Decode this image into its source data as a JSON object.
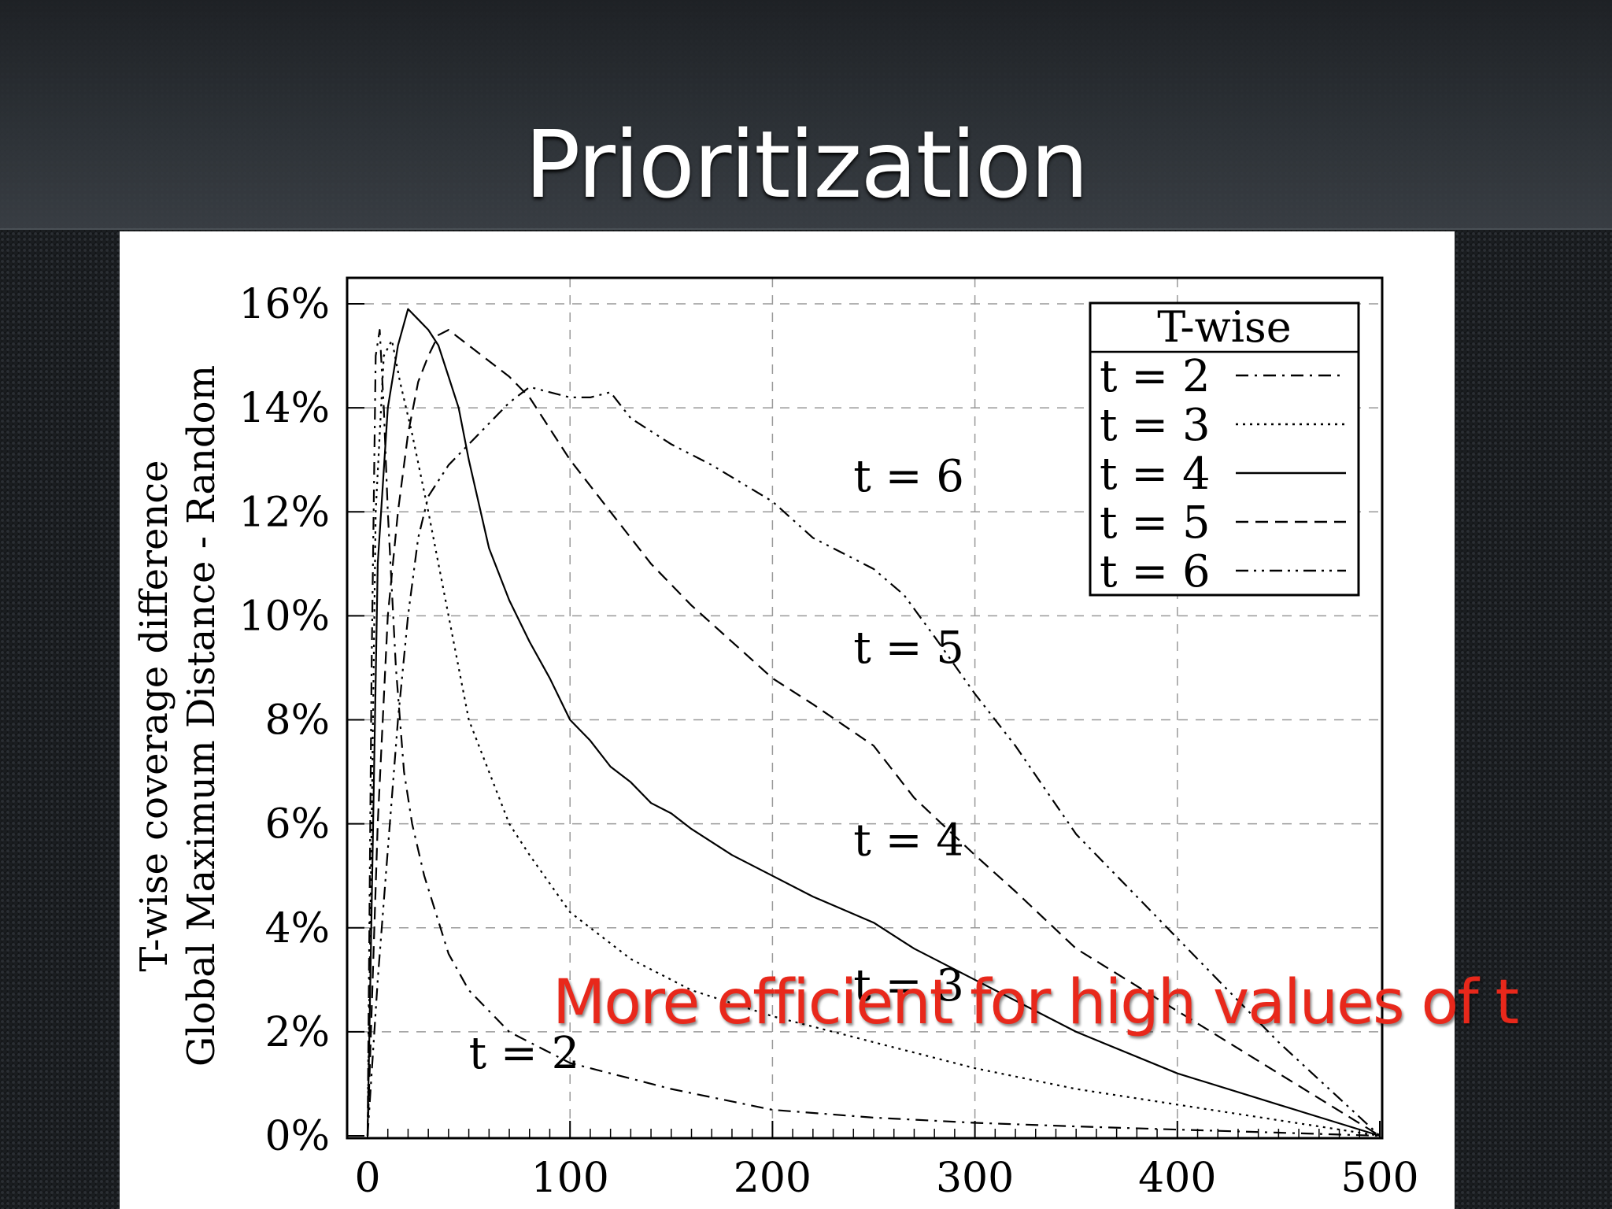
{
  "slide": {
    "title": "Prioritization",
    "annotation": "More efficient for high values of t",
    "annotation_color": "#e8281b"
  },
  "chart_data": {
    "type": "line",
    "title": "",
    "xlabel": "",
    "ylabel_lines": [
      "T-wise coverage difference",
      "Global Maximum Distance - Random"
    ],
    "xlim": [
      0,
      500
    ],
    "ylim": [
      0,
      16.5
    ],
    "x_ticks": [
      0,
      100,
      200,
      300,
      400,
      500
    ],
    "x_tick_labels": [
      "0",
      "100",
      "200",
      "300",
      "400",
      "500"
    ],
    "y_ticks": [
      0,
      2,
      4,
      6,
      8,
      10,
      12,
      14,
      16
    ],
    "y_tick_labels": [
      "0%",
      "2%",
      "4%",
      "6%",
      "8%",
      "10%",
      "12%",
      "14%",
      "16%"
    ],
    "grid": true,
    "legend": {
      "title": "T-wise",
      "placement": "top-right"
    },
    "series": [
      {
        "name": "t = 2",
        "style": "dash-dot",
        "points": [
          [
            0,
            0
          ],
          [
            2,
            9
          ],
          [
            4,
            15
          ],
          [
            6,
            15.5
          ],
          [
            8,
            14
          ],
          [
            10,
            12
          ],
          [
            14,
            9
          ],
          [
            18,
            7
          ],
          [
            22,
            6
          ],
          [
            28,
            5
          ],
          [
            32,
            4.5
          ],
          [
            40,
            3.5
          ],
          [
            50,
            2.8
          ],
          [
            70,
            2
          ],
          [
            100,
            1.4
          ],
          [
            150,
            0.9
          ],
          [
            200,
            0.5
          ],
          [
            250,
            0.35
          ],
          [
            300,
            0.25
          ],
          [
            350,
            0.18
          ],
          [
            400,
            0.12
          ],
          [
            450,
            0.06
          ],
          [
            500,
            0
          ]
        ]
      },
      {
        "name": "t = 3",
        "style": "dotted",
        "points": [
          [
            0,
            0
          ],
          [
            4,
            12
          ],
          [
            8,
            15
          ],
          [
            12,
            15.3
          ],
          [
            16,
            14.5
          ],
          [
            22,
            13.5
          ],
          [
            30,
            12
          ],
          [
            40,
            10
          ],
          [
            50,
            8
          ],
          [
            60,
            7
          ],
          [
            70,
            6
          ],
          [
            80,
            5.4
          ],
          [
            100,
            4.3
          ],
          [
            130,
            3.4
          ],
          [
            160,
            2.8
          ],
          [
            200,
            2.3
          ],
          [
            250,
            1.8
          ],
          [
            300,
            1.3
          ],
          [
            350,
            0.9
          ],
          [
            400,
            0.6
          ],
          [
            450,
            0.3
          ],
          [
            500,
            0
          ]
        ]
      },
      {
        "name": "t = 4",
        "style": "solid",
        "points": [
          [
            0,
            0
          ],
          [
            5,
            11
          ],
          [
            10,
            14
          ],
          [
            15,
            15.2
          ],
          [
            20,
            15.9
          ],
          [
            25,
            15.7
          ],
          [
            30,
            15.5
          ],
          [
            35,
            15.2
          ],
          [
            40,
            14.6
          ],
          [
            45,
            14
          ],
          [
            50,
            13
          ],
          [
            60,
            11.3
          ],
          [
            70,
            10.3
          ],
          [
            80,
            9.5
          ],
          [
            90,
            8.8
          ],
          [
            100,
            8
          ],
          [
            110,
            7.6
          ],
          [
            120,
            7.1
          ],
          [
            130,
            6.8
          ],
          [
            140,
            6.4
          ],
          [
            150,
            6.2
          ],
          [
            160,
            5.9
          ],
          [
            180,
            5.4
          ],
          [
            200,
            5
          ],
          [
            220,
            4.6
          ],
          [
            250,
            4.1
          ],
          [
            270,
            3.6
          ],
          [
            300,
            3
          ],
          [
            350,
            2
          ],
          [
            400,
            1.2
          ],
          [
            450,
            0.6
          ],
          [
            500,
            0
          ]
        ]
      },
      {
        "name": "t = 5",
        "style": "dashed",
        "points": [
          [
            0,
            0
          ],
          [
            5,
            6
          ],
          [
            10,
            10
          ],
          [
            15,
            12
          ],
          [
            20,
            13.5
          ],
          [
            25,
            14.5
          ],
          [
            30,
            15
          ],
          [
            35,
            15.4
          ],
          [
            40,
            15.5
          ],
          [
            50,
            15.2
          ],
          [
            60,
            14.9
          ],
          [
            70,
            14.6
          ],
          [
            80,
            14.2
          ],
          [
            90,
            13.6
          ],
          [
            100,
            13
          ],
          [
            120,
            12
          ],
          [
            140,
            11
          ],
          [
            160,
            10.2
          ],
          [
            180,
            9.5
          ],
          [
            200,
            8.8
          ],
          [
            220,
            8.3
          ],
          [
            250,
            7.5
          ],
          [
            270,
            6.5
          ],
          [
            300,
            5.4
          ],
          [
            320,
            4.7
          ],
          [
            350,
            3.6
          ],
          [
            400,
            2.4
          ],
          [
            450,
            1.2
          ],
          [
            500,
            0
          ]
        ]
      },
      {
        "name": "t = 6",
        "style": "dash-dot-dot",
        "points": [
          [
            0,
            0
          ],
          [
            5,
            3
          ],
          [
            10,
            5.5
          ],
          [
            15,
            8
          ],
          [
            20,
            10
          ],
          [
            25,
            11.5
          ],
          [
            30,
            12.3
          ],
          [
            40,
            12.9
          ],
          [
            50,
            13.3
          ],
          [
            60,
            13.7
          ],
          [
            70,
            14.1
          ],
          [
            80,
            14.4
          ],
          [
            90,
            14.3
          ],
          [
            100,
            14.2
          ],
          [
            110,
            14.2
          ],
          [
            120,
            14.3
          ],
          [
            130,
            13.8
          ],
          [
            150,
            13.3
          ],
          [
            170,
            12.9
          ],
          [
            200,
            12.2
          ],
          [
            220,
            11.5
          ],
          [
            250,
            10.9
          ],
          [
            265,
            10.4
          ],
          [
            280,
            9.6
          ],
          [
            300,
            8.5
          ],
          [
            320,
            7.5
          ],
          [
            350,
            5.8
          ],
          [
            400,
            3.8
          ],
          [
            450,
            1.8
          ],
          [
            500,
            0
          ]
        ]
      }
    ],
    "curve_labels": [
      {
        "text": "t = 6",
        "x": 240,
        "y": 12.4
      },
      {
        "text": "t = 5",
        "x": 240,
        "y": 9.1
      },
      {
        "text": "t = 4",
        "x": 240,
        "y": 5.4
      },
      {
        "text": "t = 3",
        "x": 240,
        "y": 2.6
      },
      {
        "text": "t = 2",
        "x": 50,
        "y": 1.3
      }
    ]
  }
}
